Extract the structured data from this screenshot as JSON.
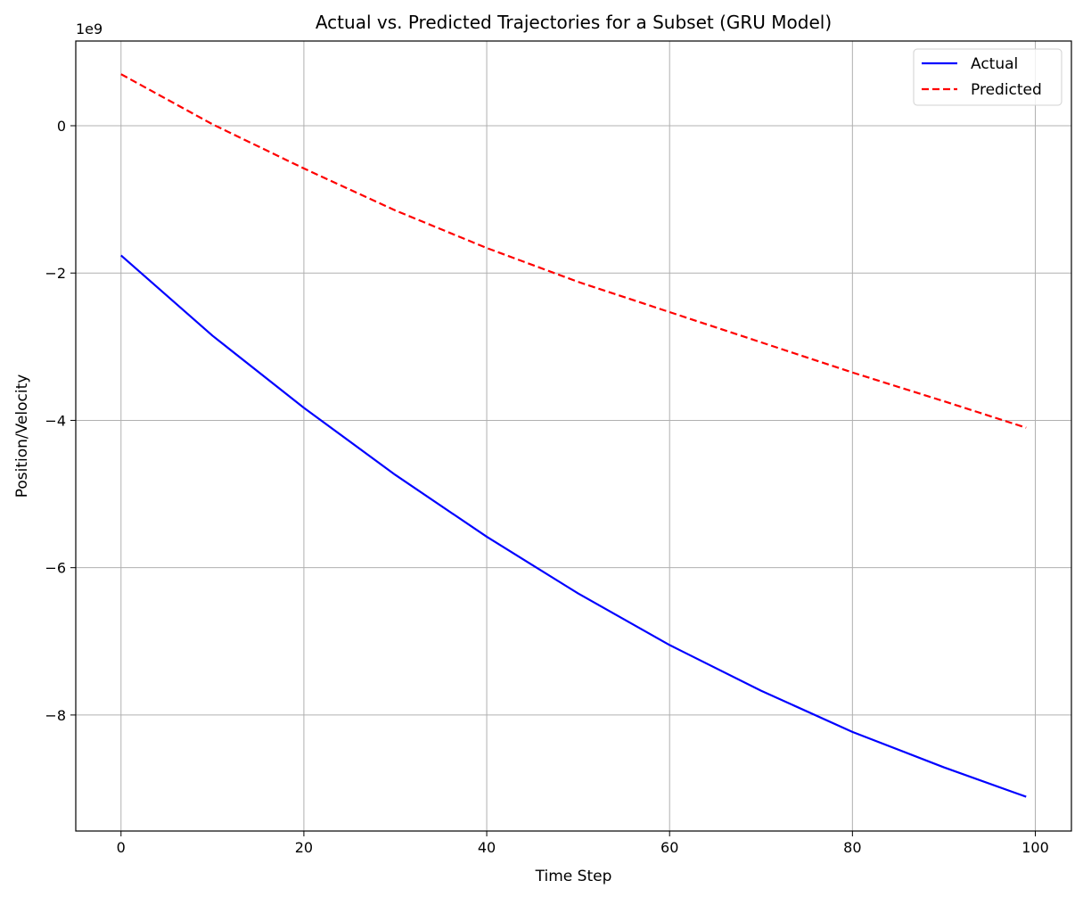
{
  "chart_data": {
    "type": "line",
    "title": "Actual vs. Predicted Trajectories for a Subset (GRU Model)",
    "xlabel": "Time Step",
    "ylabel": "Position/Velocity",
    "y_offset_label": "1e9",
    "xlim": [
      -4.95,
      103.95
    ],
    "ylim": [
      -9.575,
      1.15
    ],
    "x_ticks": [
      0,
      20,
      40,
      60,
      80,
      100
    ],
    "y_ticks": [
      -8,
      -6,
      -4,
      -2,
      0
    ],
    "x_tick_labels": [
      "0",
      "20",
      "40",
      "60",
      "80",
      "100"
    ],
    "y_tick_labels": [
      "−8",
      "−6",
      "−4",
      "−2",
      "0"
    ],
    "grid": true,
    "legend_position": "top-right",
    "series": [
      {
        "name": "Actual",
        "color": "#0000ff",
        "style": "solid",
        "x": [
          0,
          10,
          20,
          30,
          40,
          50,
          60,
          70,
          80,
          90,
          99
        ],
        "y": [
          -1.76,
          -2.85,
          -3.83,
          -4.74,
          -5.58,
          -6.35,
          -7.05,
          -7.67,
          -8.23,
          -8.71,
          -9.11
        ]
      },
      {
        "name": "Predicted",
        "color": "#ff0000",
        "style": "dashed",
        "x": [
          0,
          10,
          20,
          30,
          40,
          50,
          60,
          70,
          80,
          90,
          99
        ],
        "y": [
          0.7,
          0.02,
          -0.58,
          -1.15,
          -1.66,
          -2.12,
          -2.53,
          -2.94,
          -3.35,
          -3.74,
          -4.1
        ]
      }
    ]
  }
}
